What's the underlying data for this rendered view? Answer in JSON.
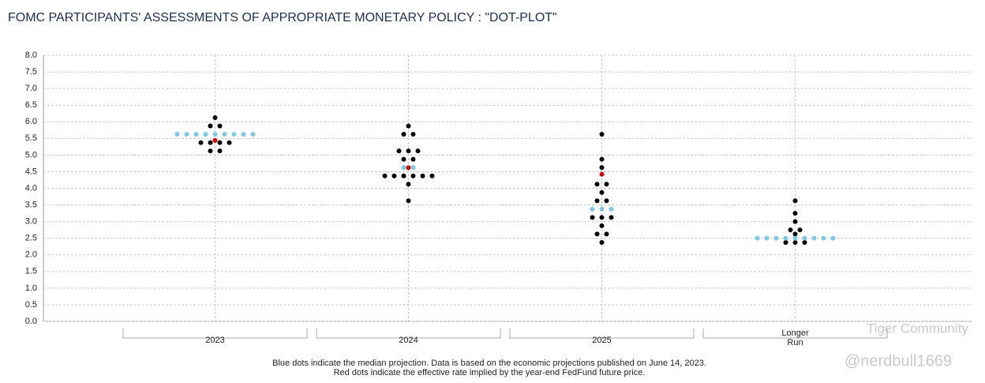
{
  "chart_data": {
    "type": "dotplot",
    "title": "FOMC PARTICIPANTS' ASSESSMENTS OF APPROPRIATE MONETARY POLICY : \"DOT-PLOT\"",
    "categories": [
      "2023",
      "2024",
      "2025",
      "Longer Run"
    ],
    "participants": [
      [
        6.125,
        5.875,
        5.875,
        5.375,
        5.375,
        5.375,
        5.375,
        5.125,
        5.125
      ],
      [
        5.875,
        5.625,
        5.625,
        5.125,
        5.125,
        5.125,
        4.875,
        4.875,
        4.375,
        4.375,
        4.375,
        4.375,
        4.375,
        4.375,
        4.125,
        3.625
      ],
      [
        5.625,
        4.875,
        4.625,
        4.125,
        4.125,
        3.875,
        3.625,
        3.625,
        3.125,
        3.125,
        3.125,
        2.875,
        2.625,
        2.625,
        2.375
      ],
      [
        3.625,
        3.25,
        3.0,
        2.75,
        2.75,
        2.625,
        2.375,
        2.375,
        2.375
      ]
    ],
    "medians": [
      [
        5.625,
        5.625,
        5.625,
        5.625,
        5.625,
        5.625,
        5.625,
        5.625,
        5.625
      ],
      [
        4.625,
        4.625
      ],
      [
        3.375,
        3.375,
        3.375
      ],
      [
        2.5,
        2.5,
        2.5,
        2.5,
        2.5,
        2.5,
        2.5,
        2.5,
        2.5
      ]
    ],
    "effective_rate": [
      5.44,
      4.62,
      4.42,
      null
    ],
    "participant_color": "#000000",
    "median_color": "#7ec8e3",
    "effective_color": "#d40000",
    "ylim": [
      0,
      8
    ],
    "yticks": [
      {
        "value": 0,
        "label": "0.0"
      },
      0.5,
      {
        "value": 1,
        "label": "1.0"
      },
      1.5,
      {
        "value": 2,
        "label": "2.0"
      },
      2.5,
      {
        "value": 3,
        "label": "3.0"
      },
      3.5,
      {
        "value": 4,
        "label": "4.0"
      },
      4.5,
      {
        "value": 5,
        "label": "5.0"
      },
      5.5,
      {
        "value": 6,
        "label": "6.0"
      },
      6.5,
      {
        "value": 7,
        "label": "7.0"
      },
      7.5,
      {
        "value": 8,
        "label": "8.0"
      }
    ],
    "grid": true,
    "footnote": [
      "Blue dots indicate the median projection. Data is based on the economic projections published on June 14, 2023.",
      "Red dots indicate the effective rate implied by the year-end FedFund future price."
    ],
    "watermark": [
      "Tiger Community",
      "@nerdbull1669"
    ]
  }
}
